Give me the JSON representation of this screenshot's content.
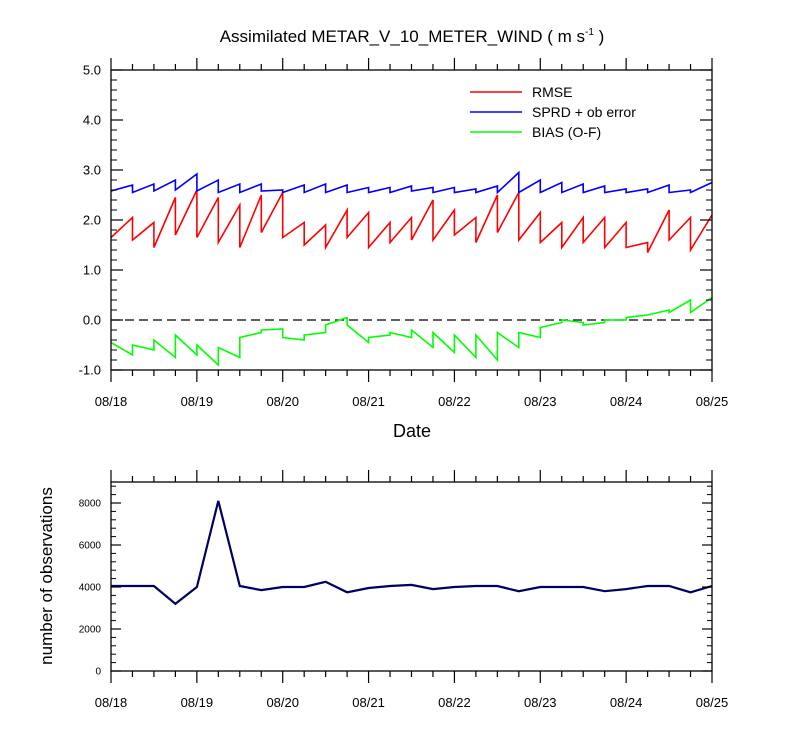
{
  "colors": {
    "rmse": "#ff0000",
    "sprd": "#0000ff",
    "bias": "#00ff00",
    "obs_line": "#000060",
    "axis": "#000000",
    "zero_line": "#000000"
  },
  "chart_data": [
    {
      "type": "line",
      "title_main": "Assimilated METAR_V_10_METER_WIND ( m s",
      "title_sup": "-1",
      "title_end": " )",
      "xlabel": "Date",
      "ylabel": "",
      "ylim": [
        -1.0,
        5.0
      ],
      "yticks": [
        "-1.0",
        "0.0",
        "1.0",
        "2.0",
        "3.0",
        "4.0",
        "5.0"
      ],
      "ytick_values": [
        -1,
        0,
        1,
        2,
        3,
        4,
        5
      ],
      "xlim": [
        0,
        7
      ],
      "xticks": [
        "08/18",
        "08/19",
        "08/20",
        "08/21",
        "08/22",
        "08/23",
        "08/24",
        "08/25"
      ],
      "zero_line": 0,
      "legend_position": "top-right",
      "series": [
        {
          "name": "RMSE",
          "color_key": "rmse",
          "x": [
            0,
            0.25,
            0.25,
            0.5,
            0.5,
            0.75,
            0.75,
            1.0,
            1.0,
            1.25,
            1.25,
            1.5,
            1.5,
            1.75,
            1.75,
            2.0,
            2.0,
            2.25,
            2.25,
            2.5,
            2.5,
            2.75,
            2.75,
            3.0,
            3.0,
            3.25,
            3.25,
            3.5,
            3.5,
            3.75,
            3.75,
            4.0,
            4.0,
            4.25,
            4.25,
            4.5,
            4.5,
            4.75,
            4.75,
            5.0,
            5.0,
            5.25,
            5.25,
            5.5,
            5.5,
            5.75,
            5.75,
            6.0,
            6.0,
            6.25,
            6.25,
            6.5,
            6.5,
            6.75,
            6.75,
            7.0
          ],
          "values": [
            1.65,
            2.05,
            1.6,
            1.95,
            1.45,
            2.45,
            1.7,
            2.6,
            1.65,
            2.45,
            1.55,
            2.3,
            1.45,
            2.5,
            1.75,
            2.55,
            1.65,
            1.95,
            1.5,
            1.9,
            1.45,
            2.2,
            1.65,
            2.15,
            1.45,
            1.95,
            1.55,
            2.05,
            1.6,
            2.4,
            1.6,
            2.2,
            1.7,
            2.05,
            1.55,
            2.5,
            1.75,
            2.55,
            1.6,
            2.15,
            1.55,
            1.95,
            1.45,
            2.05,
            1.55,
            2.05,
            1.45,
            1.95,
            1.45,
            1.55,
            1.35,
            2.2,
            1.6,
            2.05,
            1.4,
            2.1
          ]
        },
        {
          "name": "SPRD + ob error",
          "color_key": "sprd",
          "x": [
            0,
            0.25,
            0.25,
            0.5,
            0.5,
            0.75,
            0.75,
            1.0,
            1.0,
            1.25,
            1.25,
            1.5,
            1.5,
            1.75,
            1.75,
            2.0,
            2.0,
            2.25,
            2.25,
            2.5,
            2.5,
            2.75,
            2.75,
            3.0,
            3.0,
            3.25,
            3.25,
            3.5,
            3.5,
            3.75,
            3.75,
            4.0,
            4.0,
            4.25,
            4.25,
            4.5,
            4.5,
            4.75,
            4.75,
            5.0,
            5.0,
            5.25,
            5.25,
            5.5,
            5.5,
            5.75,
            5.75,
            6.0,
            6.0,
            6.25,
            6.25,
            6.5,
            6.5,
            6.75,
            6.75,
            7.0
          ],
          "values": [
            2.58,
            2.7,
            2.55,
            2.72,
            2.58,
            2.8,
            2.6,
            2.92,
            2.58,
            2.8,
            2.55,
            2.72,
            2.55,
            2.72,
            2.58,
            2.6,
            2.55,
            2.7,
            2.55,
            2.72,
            2.55,
            2.7,
            2.55,
            2.65,
            2.55,
            2.65,
            2.55,
            2.68,
            2.58,
            2.65,
            2.55,
            2.65,
            2.55,
            2.62,
            2.55,
            2.68,
            2.55,
            2.95,
            2.55,
            2.8,
            2.55,
            2.75,
            2.55,
            2.72,
            2.55,
            2.68,
            2.55,
            2.62,
            2.55,
            2.62,
            2.55,
            2.7,
            2.55,
            2.6,
            2.55,
            2.75
          ]
        },
        {
          "name": "BIAS (O-F)",
          "color_key": "bias",
          "x": [
            0,
            0.25,
            0.25,
            0.5,
            0.5,
            0.75,
            0.75,
            1.0,
            1.0,
            1.25,
            1.25,
            1.5,
            1.5,
            1.75,
            1.75,
            2.0,
            2.0,
            2.25,
            2.25,
            2.5,
            2.5,
            2.75,
            2.75,
            3.0,
            3.0,
            3.25,
            3.25,
            3.5,
            3.5,
            3.75,
            3.75,
            4.0,
            4.0,
            4.25,
            4.25,
            4.5,
            4.5,
            4.75,
            4.75,
            5.0,
            5.0,
            5.25,
            5.25,
            5.5,
            5.5,
            5.75,
            5.75,
            6.0,
            6.0,
            6.25,
            6.25,
            6.5,
            6.5,
            6.75,
            6.75,
            7.0
          ],
          "values": [
            -0.45,
            -0.7,
            -0.5,
            -0.6,
            -0.4,
            -0.75,
            -0.3,
            -0.7,
            -0.5,
            -0.9,
            -0.55,
            -0.75,
            -0.35,
            -0.25,
            -0.2,
            -0.18,
            -0.35,
            -0.4,
            -0.3,
            -0.25,
            -0.1,
            0.05,
            -0.1,
            -0.45,
            -0.35,
            -0.3,
            -0.25,
            -0.35,
            -0.2,
            -0.55,
            -0.25,
            -0.65,
            -0.3,
            -0.75,
            -0.3,
            -0.8,
            -0.25,
            -0.55,
            -0.25,
            -0.35,
            -0.15,
            -0.05,
            0.0,
            -0.05,
            -0.1,
            -0.05,
            0.0,
            0.0,
            0.05,
            0.1,
            0.1,
            0.2,
            0.15,
            0.4,
            0.15,
            0.45
          ]
        }
      ]
    },
    {
      "type": "line",
      "ylabel": "number of observations",
      "xlabel": "",
      "ylim": [
        0,
        9000
      ],
      "yticks": [
        "0",
        "2000",
        "4000",
        "6000",
        "8000"
      ],
      "ytick_values": [
        0,
        2000,
        4000,
        6000,
        8000
      ],
      "xlim": [
        0,
        7
      ],
      "xticks": [
        "08/18",
        "08/19",
        "08/20",
        "08/21",
        "08/22",
        "08/23",
        "08/24",
        "08/25"
      ],
      "series": [
        {
          "name": "observations",
          "color_key": "obs_line",
          "x": [
            0,
            0.25,
            0.5,
            0.75,
            1.0,
            1.25,
            1.5,
            1.75,
            2.0,
            2.25,
            2.5,
            2.75,
            3.0,
            3.25,
            3.5,
            3.75,
            4.0,
            4.25,
            4.5,
            4.75,
            5.0,
            5.25,
            5.5,
            5.75,
            6.0,
            6.25,
            6.5,
            6.75,
            7.0
          ],
          "values": [
            4050,
            4050,
            4050,
            3200,
            4000,
            8100,
            4050,
            3850,
            4000,
            4000,
            4250,
            3750,
            3950,
            4050,
            4100,
            3900,
            4000,
            4050,
            4050,
            3800,
            4000,
            4000,
            4000,
            3800,
            3900,
            4050,
            4050,
            3750,
            4050
          ]
        }
      ]
    }
  ]
}
